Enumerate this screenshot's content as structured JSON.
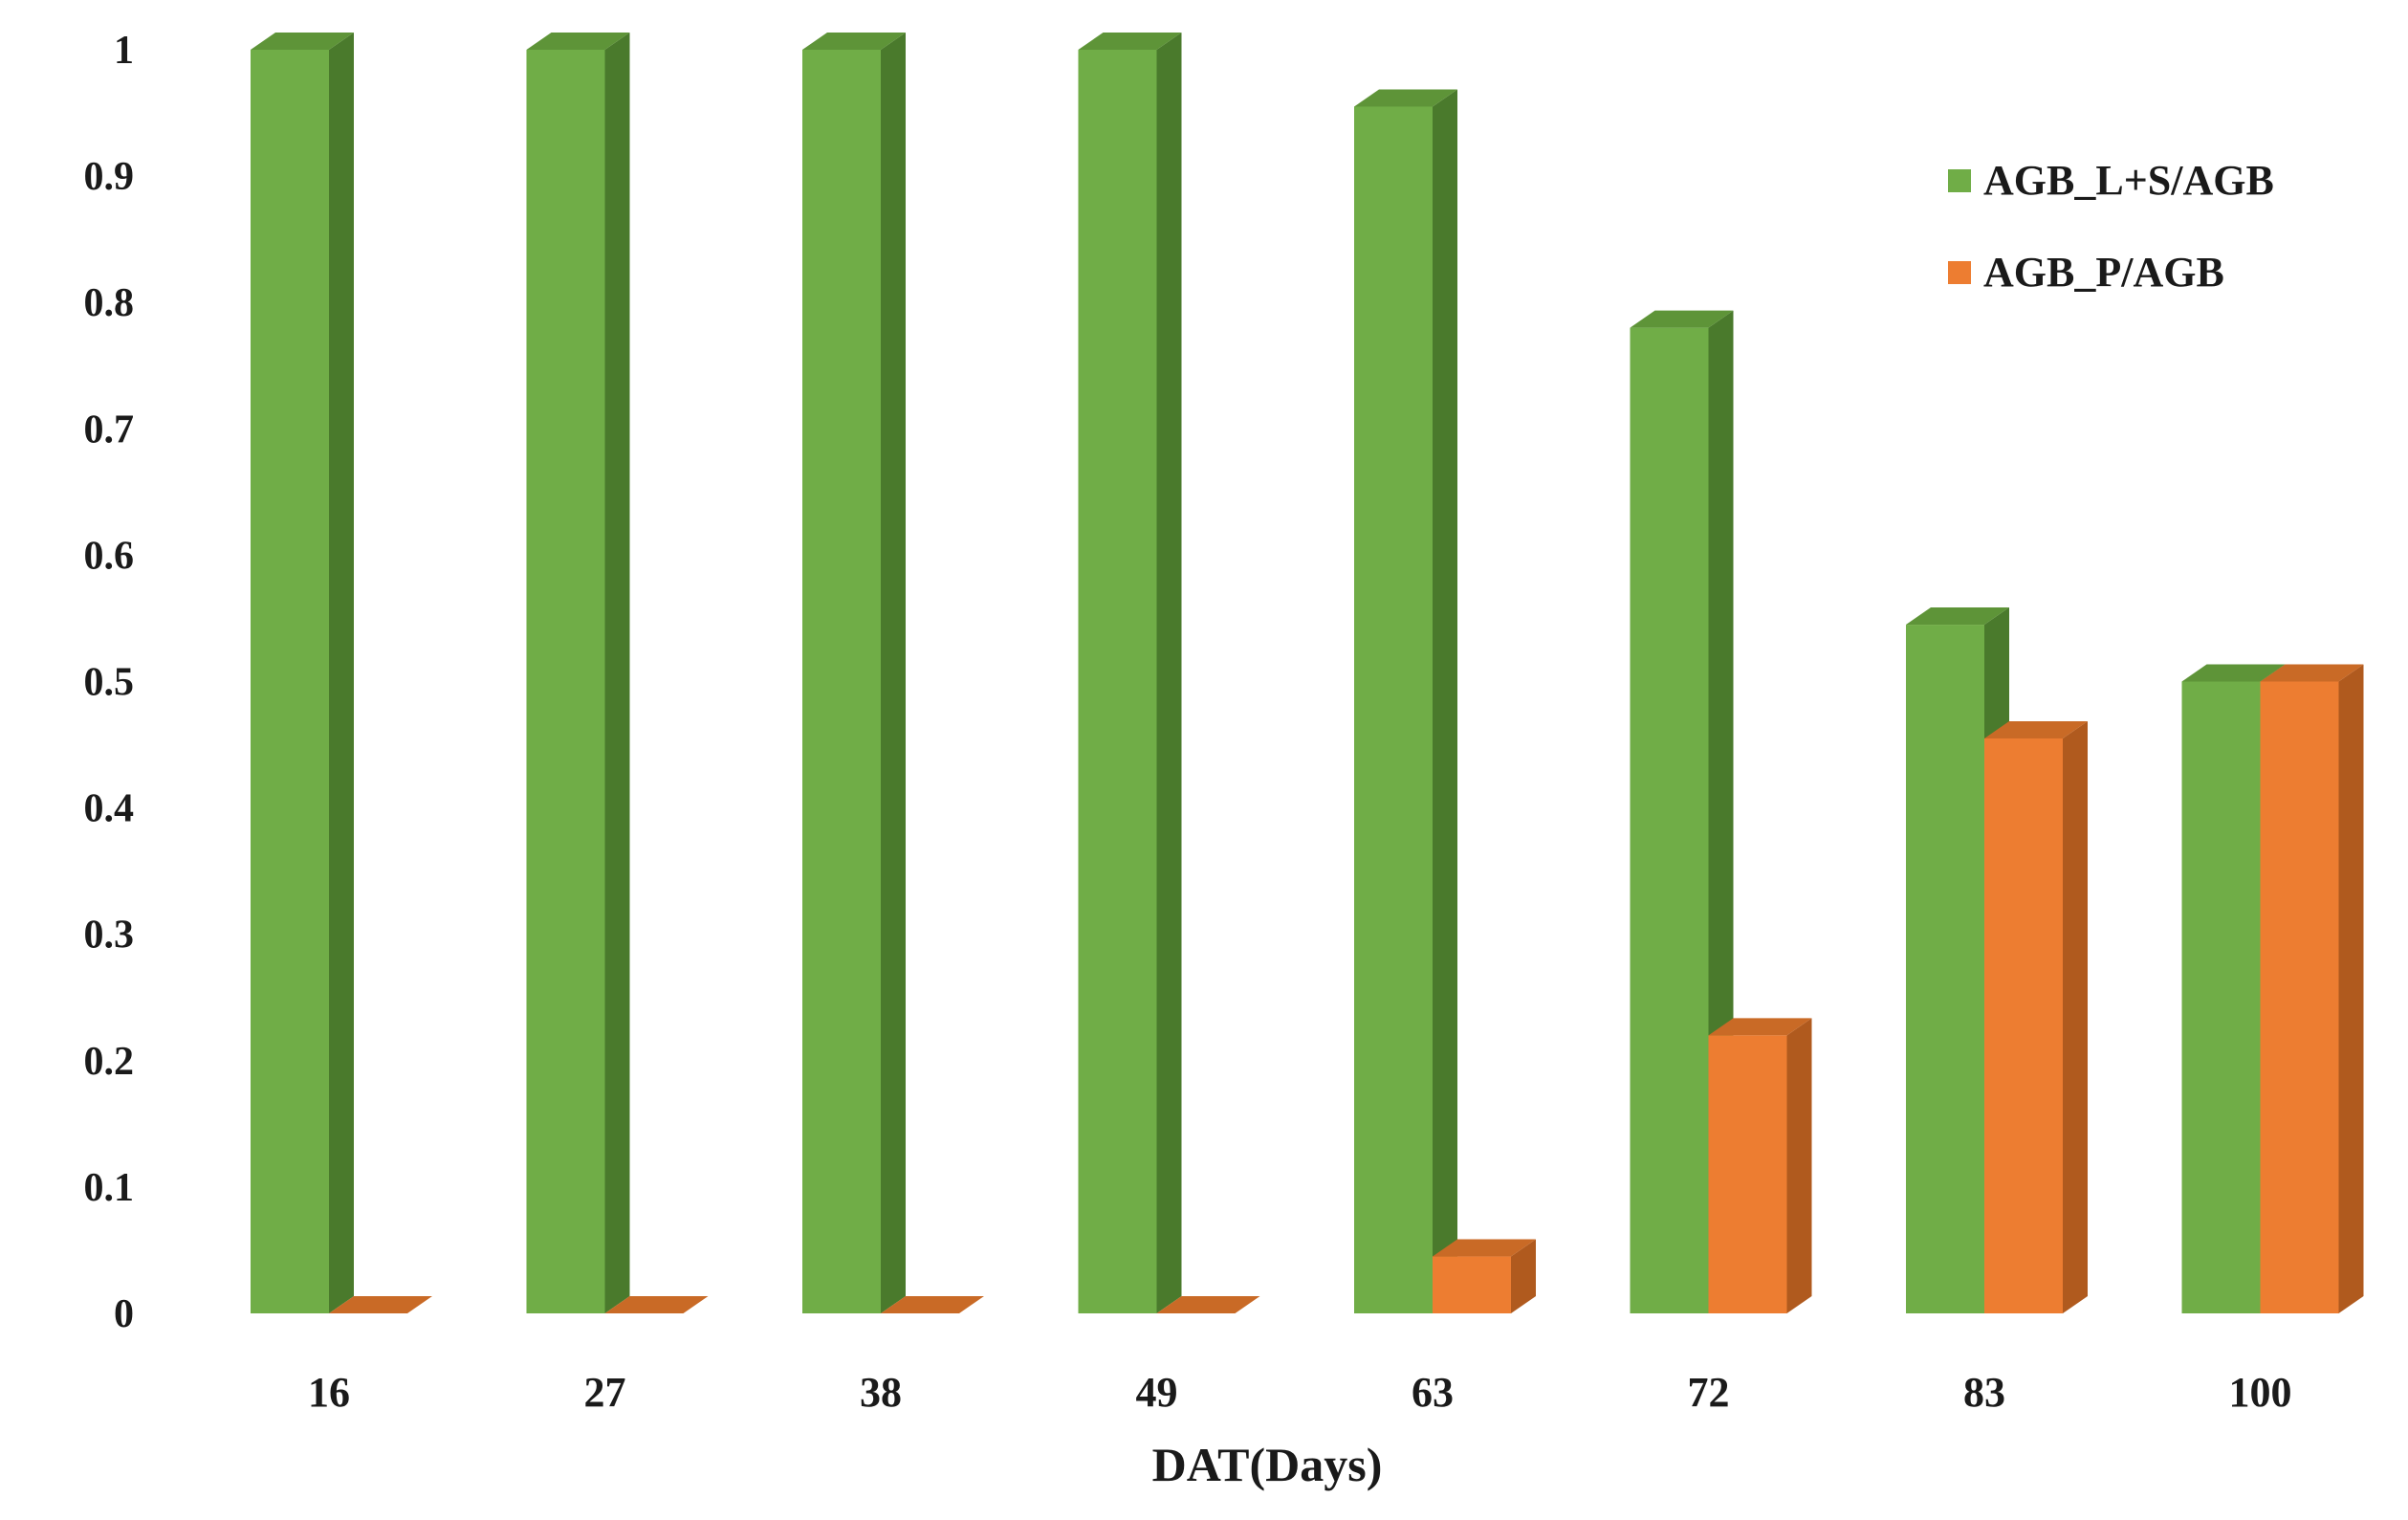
{
  "chart_data": {
    "type": "bar",
    "style": "3d-clustered-column",
    "categories": [
      "16",
      "27",
      "38",
      "49",
      "63",
      "72",
      "83",
      "100"
    ],
    "series": [
      {
        "name": "AGB_L+S/AGB",
        "values": [
          1.0,
          1.0,
          1.0,
          1.0,
          0.955,
          0.78,
          0.545,
          0.5
        ],
        "color": "#70ad47",
        "side_color": "#4a7a2c",
        "top_color": "#5e9438"
      },
      {
        "name": "AGB_P/AGB",
        "values": [
          0.0,
          0.0,
          0.0,
          0.0,
          0.045,
          0.22,
          0.455,
          0.5
        ],
        "color": "#ed7d31",
        "side_color": "#b05a1e",
        "top_color": "#c96a26"
      }
    ],
    "title": "",
    "xlabel": "DAT(Days)",
    "ylabel": "",
    "ylim": [
      0,
      1
    ],
    "yticks": [
      "0",
      "0.1",
      "0.2",
      "0.3",
      "0.4",
      "0.5",
      "0.6",
      "0.7",
      "0.8",
      "0.9",
      "1"
    ],
    "grid": false,
    "legend_position": "top-right"
  }
}
